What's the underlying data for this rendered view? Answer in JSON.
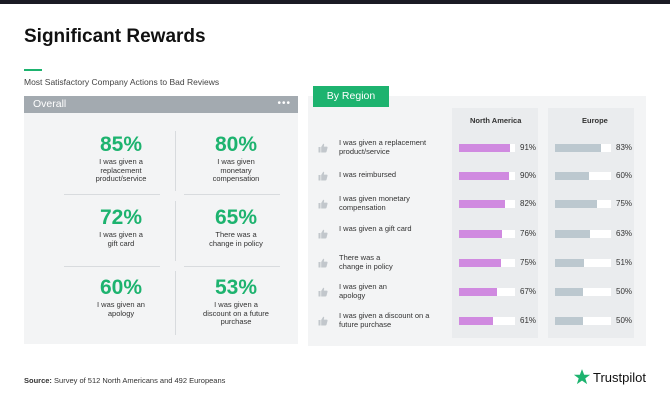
{
  "title": "Significant Rewards",
  "subtitle": "Most Satisfactory Company Actions to Bad Reviews",
  "overall": {
    "header": "Overall",
    "menu": "•••",
    "items": [
      {
        "pct": "85%",
        "desc": "I was given a replacement product/service"
      },
      {
        "pct": "80%",
        "desc": "I was given monetary compensation"
      },
      {
        "pct": "72%",
        "desc": "I was given a gift card"
      },
      {
        "pct": "65%",
        "desc": "There was a change in policy"
      },
      {
        "pct": "60%",
        "desc": "I was given an apology"
      },
      {
        "pct": "53%",
        "desc": "I was given a discount on a future purchase"
      }
    ]
  },
  "region_tab": "By Region",
  "chart_data": {
    "type": "bar",
    "orientation": "horizontal",
    "categories": [
      "I was given a replacement product/service",
      "I was reimbursed",
      "I was given monetary compensation",
      "I was given a gift card",
      "There was a change in policy",
      "I was given an apology",
      "I was given a discount on a future purchase"
    ],
    "series": [
      {
        "name": "North America",
        "values": [
          91,
          90,
          82,
          76,
          75,
          67,
          61
        ],
        "labels": [
          "91%",
          "90%",
          "82%",
          "76%",
          "75%",
          "67%",
          "61%"
        ],
        "color": "#d08ae0"
      },
      {
        "name": "Europe",
        "values": [
          83,
          60,
          75,
          63,
          51,
          50,
          50
        ],
        "labels": [
          "83%",
          "60%",
          "75%",
          "63%",
          "51%",
          "50%",
          "50%"
        ],
        "color": "#bcc8cf"
      }
    ],
    "xlim": [
      0,
      100
    ]
  },
  "source": {
    "label": "Source:",
    "text": " Survey of 512 North Americans and 492 Europeans"
  },
  "brand": "Trustpilot",
  "colors": {
    "accent": "#1db36f",
    "na": "#d08ae0",
    "eu": "#bcc8cf"
  }
}
